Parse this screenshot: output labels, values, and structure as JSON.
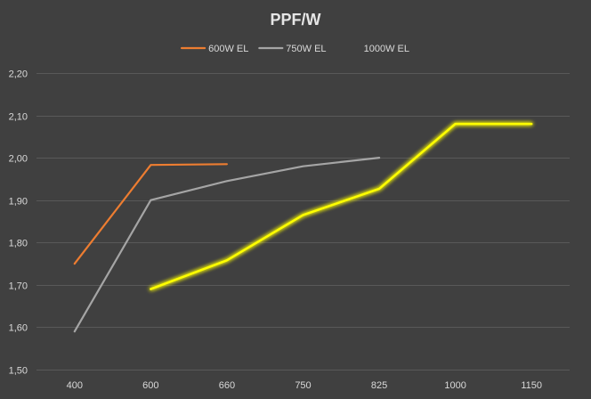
{
  "chart_data": {
    "type": "line",
    "title": "PPF/W",
    "xlabel": "",
    "ylabel": "",
    "categories": [
      "400",
      "600",
      "660",
      "750",
      "825",
      "1000",
      "1150"
    ],
    "y_tick_labels": [
      "1,50",
      "1,60",
      "1,70",
      "1,80",
      "1,90",
      "2,00",
      "2,10",
      "2,20"
    ],
    "ylim": [
      1.5,
      2.2
    ],
    "grid": true,
    "legend_position": "top",
    "series": [
      {
        "name": "600W EL",
        "color": "#ed7d31",
        "glow": false,
        "points": [
          {
            "x": "400",
            "y": 1.75
          },
          {
            "x": "600",
            "y": 1.983
          },
          {
            "x": "660",
            "y": 1.985
          }
        ]
      },
      {
        "name": "750W EL",
        "color": "#a5a5a5",
        "glow": false,
        "points": [
          {
            "x": "400",
            "y": 1.59
          },
          {
            "x": "600",
            "y": 1.9
          },
          {
            "x": "660",
            "y": 1.945
          },
          {
            "x": "750",
            "y": 1.98
          },
          {
            "x": "825",
            "y": 2.0
          }
        ]
      },
      {
        "name": "1000W EL",
        "color": "#ffff00",
        "glow": true,
        "points": [
          {
            "x": "600",
            "y": 1.69
          },
          {
            "x": "660",
            "y": 1.758
          },
          {
            "x": "750",
            "y": 1.865
          },
          {
            "x": "825",
            "y": 1.927
          },
          {
            "x": "1000",
            "y": 2.08
          },
          {
            "x": "1150",
            "y": 2.08
          }
        ]
      }
    ]
  }
}
